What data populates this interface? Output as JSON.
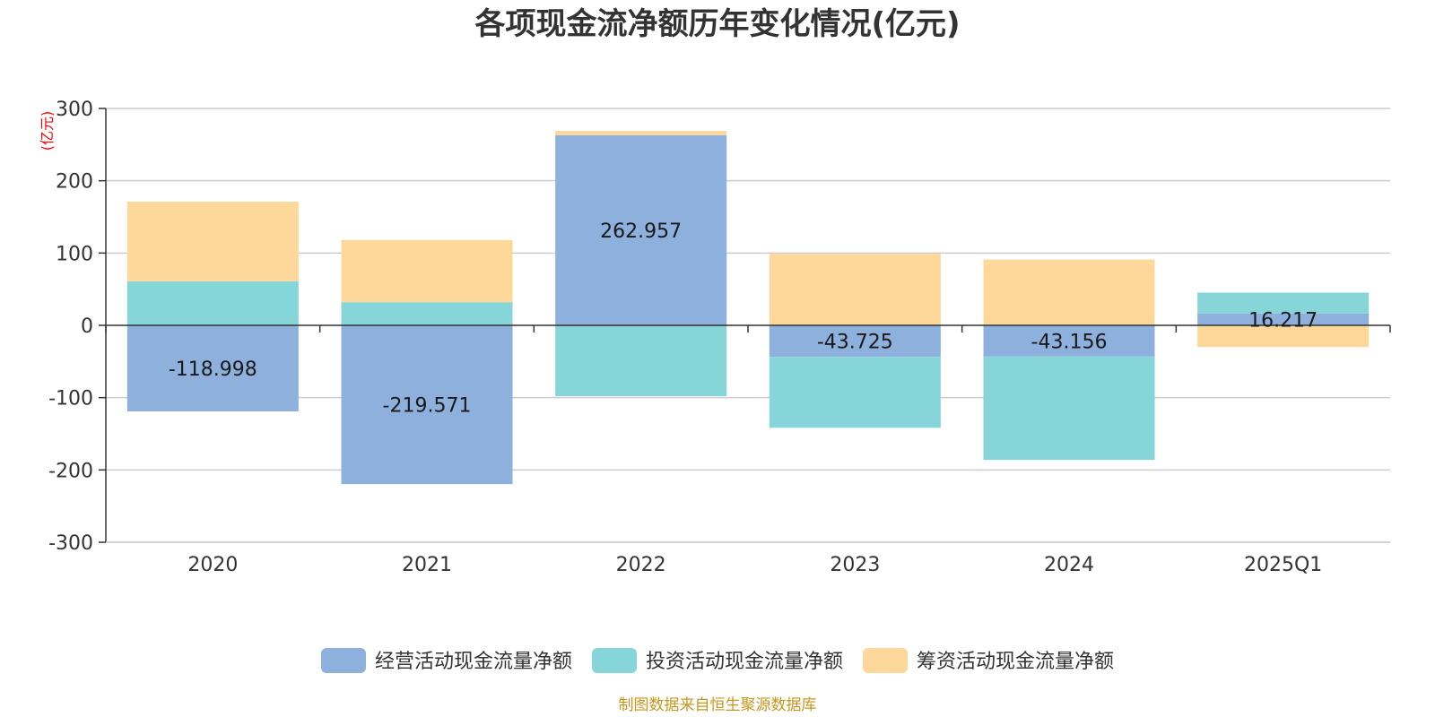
{
  "chart_data": {
    "type": "bar",
    "stacked": true,
    "title": "各项现金流净额历年变化情况(亿元)",
    "y_unit": "(亿元)",
    "ylim": [
      -300,
      300
    ],
    "y_ticks": [
      300,
      200,
      100,
      0,
      -100,
      -200,
      -300
    ],
    "categories": [
      "2020",
      "2021",
      "2022",
      "2023",
      "2024",
      "2025Q1"
    ],
    "series": [
      {
        "name": "经营活动现金流量净额",
        "color": "#8eb0dc",
        "values": [
          -118.998,
          -219.571,
          262.957,
          -43.725,
          -43.156,
          16.217
        ],
        "labels": [
          "-118.998",
          "-219.571",
          "262.957",
          "-43.725",
          "-43.156",
          "16.217"
        ]
      },
      {
        "name": "投资活动现金流量净额",
        "color": "#86d5d8",
        "values": [
          61,
          32,
          -98,
          -98,
          -143,
          29
        ],
        "labels": []
      },
      {
        "name": "筹资活动现金流量净额",
        "color": "#fdd89a",
        "values": [
          110,
          86,
          6,
          99,
          91,
          -30
        ],
        "labels": []
      }
    ],
    "grid": true,
    "legend_position": "bottom",
    "source": "制图数据来自恒生聚源数据库"
  }
}
